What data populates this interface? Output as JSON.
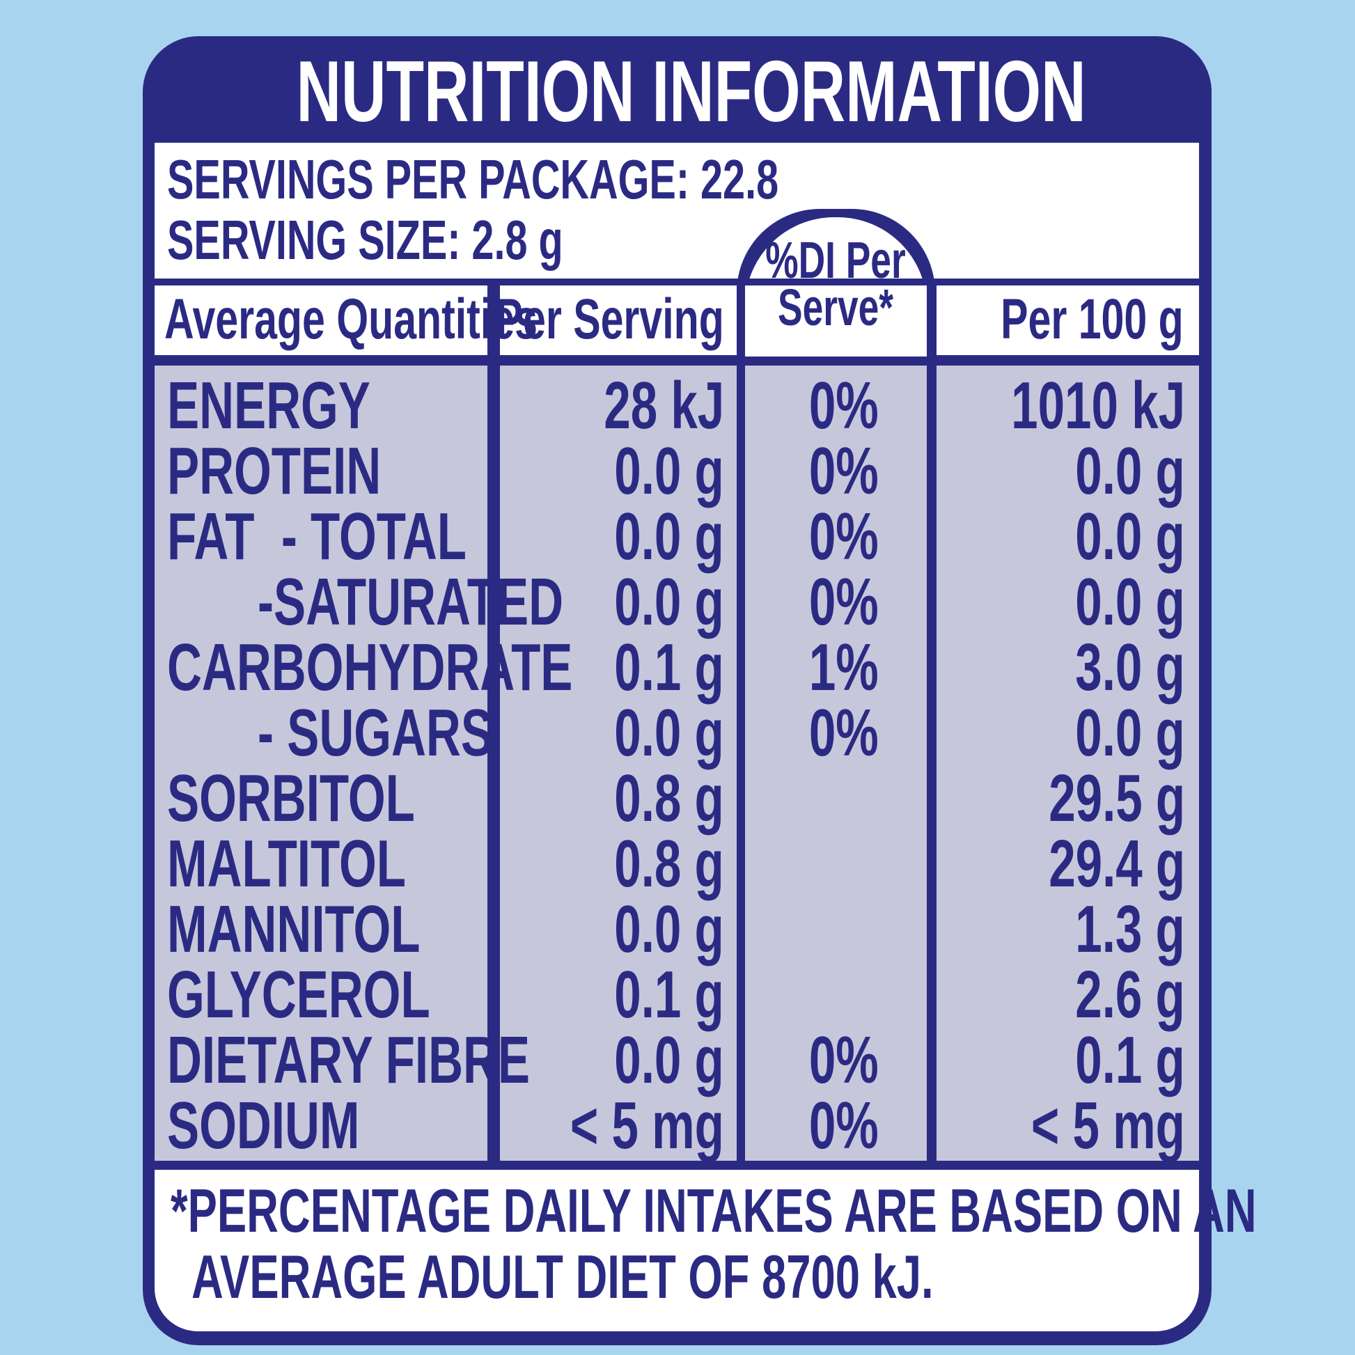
{
  "title": "NUTRITION INFORMATION",
  "servings": {
    "per_package": "SERVINGS PER PACKAGE: 22.8",
    "size": "SERVING SIZE: 2.8 g"
  },
  "table": {
    "headers": [
      "Average Quantities",
      "Per Serving",
      "%DI Per Serve*",
      "Per 100 g"
    ],
    "rows": [
      [
        "ENERGY",
        "28 kJ",
        "0%",
        "1010 kJ"
      ],
      [
        "PROTEIN",
        "0.0 g",
        "0%",
        "0.0 g"
      ],
      [
        "FAT  - TOTAL",
        "0.0 g",
        "0%",
        "0.0 g"
      ],
      [
        "-SATURATED",
        "0.0 g",
        "0%",
        "0.0 g"
      ],
      [
        "CARBOHYDRATE",
        "0.1 g",
        "1%",
        "3.0 g"
      ],
      [
        "- SUGARS",
        "0.0 g",
        "0%",
        "0.0 g"
      ],
      [
        "SORBITOL",
        "0.8 g",
        null,
        "29.5 g"
      ],
      [
        "MALTITOL",
        "0.8 g",
        null,
        "29.4 g"
      ],
      [
        "MANNITOL",
        "0.0 g",
        null,
        "1.3 g"
      ],
      [
        "GLYCEROL",
        "0.1 g",
        null,
        "2.6 g"
      ],
      [
        "DIETARY FIBRE",
        "0.0 g",
        "0%",
        "0.1 g"
      ],
      [
        "SODIUM",
        "< 5 mg",
        "0%",
        "< 5 mg"
      ]
    ]
  },
  "footnote": [
    "*PERCENTAGE DAILY INTAKES ARE BASED ON AN",
    "AVERAGE ADULT DIET OF 8700 kJ."
  ]
}
